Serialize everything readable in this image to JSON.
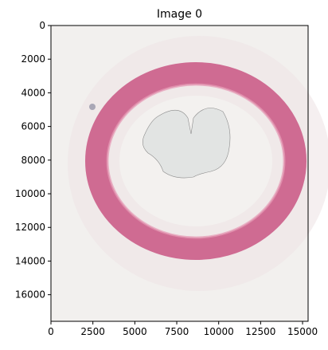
{
  "chart_data": {
    "type": "image",
    "title": "Image 0",
    "xlim": [
      0,
      15330
    ],
    "xticks": [
      0,
      2500,
      5000,
      7500,
      10000,
      12500,
      15000
    ],
    "ylim": [
      0,
      17580
    ],
    "yticks": [
      0,
      2000,
      4000,
      6000,
      8000,
      10000,
      12000,
      14000,
      16000
    ],
    "y_inverted": true
  }
}
